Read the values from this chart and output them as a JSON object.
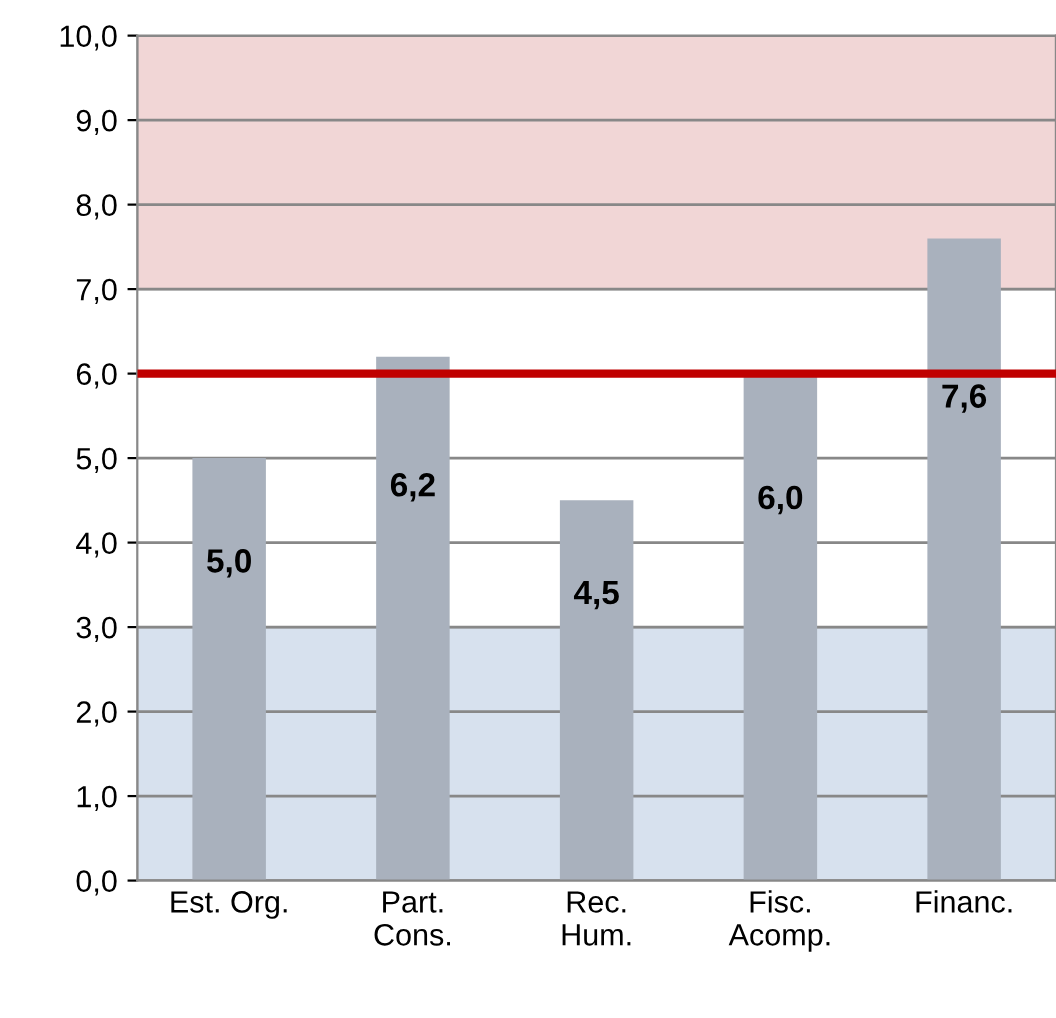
{
  "chart_data": {
    "type": "bar",
    "categories": [
      "Est. Org.",
      "Part.\nCons.",
      "Rec.\nHum.",
      "Fisc.\nAcomp.",
      "Financ."
    ],
    "values": [
      5.0,
      6.2,
      4.5,
      6.0,
      7.6
    ],
    "color": "#a9b1bd",
    "value_labels": [
      "5,0",
      "6,2",
      "4,5",
      "6,0",
      "7,6"
    ],
    "ylim": [
      0,
      10
    ],
    "yticks": [
      {
        "value": 0,
        "label": "0,0"
      },
      {
        "value": 1,
        "label": "1,0"
      },
      {
        "value": 2,
        "label": "2,0"
      },
      {
        "value": 3,
        "label": "3,0"
      },
      {
        "value": 4,
        "label": "4,0"
      },
      {
        "value": 5,
        "label": "5,0"
      },
      {
        "value": 6,
        "label": "6,0"
      },
      {
        "value": 7,
        "label": "7,0"
      },
      {
        "value": 8,
        "label": "8,0"
      },
      {
        "value": 9,
        "label": "9,0"
      },
      {
        "value": 10,
        "label": "10,0"
      }
    ],
    "grid": "y",
    "bands": [
      {
        "axis": "y",
        "from": 0,
        "to": 3,
        "color": "#d7e1ee"
      },
      {
        "axis": "y",
        "from": 7,
        "to": 10,
        "color": "#f1d6d6"
      }
    ],
    "ref_lines": [
      {
        "axis": "y",
        "value": 6,
        "color": "#c00000",
        "line_style": "solid"
      }
    ]
  }
}
